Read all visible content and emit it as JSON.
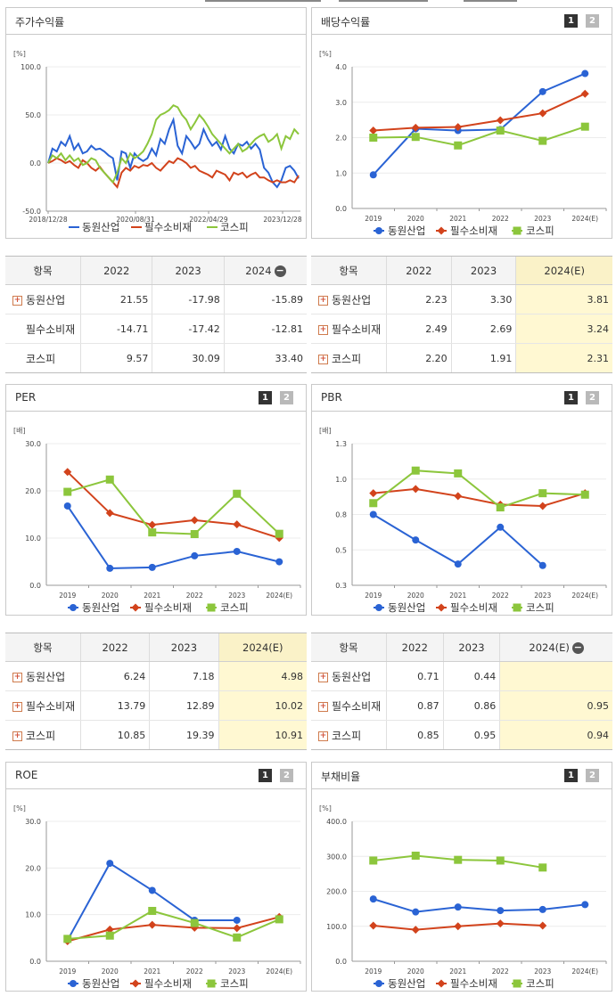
{
  "colors": {
    "dongwon": "#2a63d4",
    "pilsu": "#d2431c",
    "kospi": "#8cc63c"
  },
  "legend": [
    "동원산업",
    "필수소비재",
    "코스피"
  ],
  "pager": [
    "1",
    "2"
  ],
  "stock_return": {
    "title": "주가수익률",
    "unit": "[%]",
    "yticks": [
      "100.0",
      "50.0",
      "0.0",
      "-50.0"
    ],
    "xticks": [
      "2018/12/28",
      "2020/08/31",
      "2022/04/29",
      "2023/12/28"
    ],
    "table": {
      "headers": [
        "항목",
        "2022",
        "2023",
        "2024"
      ],
      "rows": [
        {
          "name": "동원산업",
          "plus": true,
          "values": [
            "21.55",
            "-17.98",
            "-15.89"
          ]
        },
        {
          "name": "필수소비재",
          "plus": false,
          "values": [
            "-14.71",
            "-17.42",
            "-12.81"
          ]
        },
        {
          "name": "코스피",
          "plus": false,
          "values": [
            "9.57",
            "30.09",
            "33.40"
          ]
        }
      ]
    }
  },
  "dividend": {
    "title": "배당수익률",
    "unit": "[%]",
    "yticks": [
      "4.0",
      "3.0",
      "2.0",
      "1.0",
      "0.0"
    ],
    "xticks": [
      "2019",
      "2020",
      "2021",
      "2022",
      "2023",
      "2024(E)"
    ],
    "table": {
      "headers": [
        "항목",
        "2022",
        "2023",
        "2024(E)"
      ],
      "rows": [
        {
          "name": "동원산업",
          "plus": true,
          "values": [
            "2.23",
            "3.30",
            "3.81"
          ]
        },
        {
          "name": "필수소비재",
          "plus": true,
          "values": [
            "2.49",
            "2.69",
            "3.24"
          ]
        },
        {
          "name": "코스피",
          "plus": true,
          "values": [
            "2.20",
            "1.91",
            "2.31"
          ]
        }
      ]
    }
  },
  "per": {
    "title": "PER",
    "unit": "[배]",
    "yticks": [
      "30.0",
      "20.0",
      "10.0",
      "0.0"
    ],
    "xticks": [
      "2019",
      "2020",
      "2021",
      "2022",
      "2023",
      "2024(E)"
    ],
    "table": {
      "headers": [
        "항목",
        "2022",
        "2023",
        "2024(E)"
      ],
      "rows": [
        {
          "name": "동원산업",
          "plus": true,
          "values": [
            "6.24",
            "7.18",
            "4.98"
          ]
        },
        {
          "name": "필수소비재",
          "plus": true,
          "values": [
            "13.79",
            "12.89",
            "10.02"
          ]
        },
        {
          "name": "코스피",
          "plus": true,
          "values": [
            "10.85",
            "19.39",
            "10.91"
          ]
        }
      ]
    }
  },
  "pbr": {
    "title": "PBR",
    "unit": "[배]",
    "yticks": [
      "1.3",
      "1.0",
      "0.8",
      "0.5",
      "0.3"
    ],
    "xticks": [
      "2019",
      "2020",
      "2021",
      "2022",
      "2023",
      "2024(E)"
    ],
    "table": {
      "headers": [
        "항목",
        "2022",
        "2023",
        "2024(E)"
      ],
      "rows": [
        {
          "name": "동원산업",
          "plus": true,
          "values": [
            "0.71",
            "0.44",
            ""
          ]
        },
        {
          "name": "필수소비재",
          "plus": true,
          "values": [
            "0.87",
            "0.86",
            "0.95"
          ]
        },
        {
          "name": "코스피",
          "plus": true,
          "values": [
            "0.85",
            "0.95",
            "0.94"
          ]
        }
      ]
    }
  },
  "roe": {
    "title": "ROE",
    "unit": "[%]",
    "yticks": [
      "30.0",
      "20.0",
      "10.0",
      "0.0"
    ],
    "xticks": [
      "2019",
      "2020",
      "2021",
      "2022",
      "2023",
      "2024(E)"
    ]
  },
  "debt": {
    "title": "부채비율",
    "unit": "[%]",
    "yticks": [
      "400.0",
      "300.0",
      "200.0",
      "100.0",
      "0.0"
    ],
    "xticks": [
      "2019",
      "2020",
      "2021",
      "2022",
      "2023",
      "2024(E)"
    ]
  },
  "chart_data": [
    {
      "type": "line",
      "title": "주가수익률",
      "ylim": [
        -50,
        100
      ],
      "x_range": [
        "2018/12/28",
        "2024"
      ],
      "series": [
        {
          "name": "동원산업",
          "values": [
            0,
            15,
            12,
            22,
            18,
            28,
            14,
            20,
            10,
            12,
            18,
            14,
            15,
            12,
            8,
            5,
            -18,
            12,
            10,
            -5,
            10,
            5,
            2,
            5,
            15,
            8,
            25,
            20,
            35,
            45,
            18,
            10,
            28,
            22,
            15,
            20,
            35,
            25,
            18,
            22,
            14,
            28,
            15,
            10,
            20,
            18,
            22,
            15,
            20,
            14,
            -5,
            -10,
            -20,
            -25,
            -18,
            -5,
            -3,
            -8,
            -16
          ]
        },
        {
          "name": "필수소비재",
          "values": [
            0,
            2,
            5,
            3,
            0,
            2,
            -2,
            -5,
            3,
            0,
            -5,
            -8,
            -4,
            -10,
            -15,
            -20,
            -25,
            -10,
            -5,
            -8,
            -3,
            -5,
            -2,
            -3,
            0,
            -5,
            -8,
            -3,
            2,
            0,
            5,
            3,
            0,
            -5,
            -3,
            -8,
            -10,
            -12,
            -15,
            -8,
            -10,
            -12,
            -18,
            -10,
            -12,
            -10,
            -15,
            -12,
            -10,
            -15,
            -15,
            -18,
            -20,
            -18,
            -20,
            -20,
            -18,
            -20,
            -13
          ]
        },
        {
          "name": "코스피",
          "values": [
            0,
            8,
            5,
            10,
            3,
            8,
            2,
            5,
            -2,
            0,
            5,
            3,
            -5,
            -10,
            -15,
            -20,
            -10,
            5,
            0,
            10,
            5,
            8,
            12,
            20,
            30,
            45,
            50,
            52,
            55,
            60,
            58,
            50,
            45,
            35,
            42,
            50,
            45,
            38,
            30,
            25,
            20,
            15,
            10,
            15,
            20,
            12,
            15,
            20,
            25,
            28,
            30,
            22,
            25,
            30,
            15,
            28,
            25,
            35,
            30
          ]
        }
      ]
    },
    {
      "type": "line",
      "title": "배당수익률",
      "categories": [
        "2019",
        "2020",
        "2021",
        "2022",
        "2023",
        "2024(E)"
      ],
      "ylim": [
        0,
        4
      ],
      "series": [
        {
          "name": "동원산업",
          "values": [
            0.95,
            2.25,
            2.2,
            2.23,
            3.3,
            3.81
          ]
        },
        {
          "name": "필수소비재",
          "values": [
            2.2,
            2.28,
            2.3,
            2.49,
            2.69,
            3.24
          ]
        },
        {
          "name": "코스피",
          "values": [
            2.0,
            2.02,
            1.78,
            2.2,
            1.91,
            2.31
          ]
        }
      ]
    },
    {
      "type": "line",
      "title": "PER",
      "categories": [
        "2019",
        "2020",
        "2021",
        "2022",
        "2023",
        "2024(E)"
      ],
      "ylim": [
        0,
        30
      ],
      "series": [
        {
          "name": "동원산업",
          "values": [
            16.8,
            3.6,
            3.8,
            6.24,
            7.18,
            4.98
          ]
        },
        {
          "name": "필수소비재",
          "values": [
            24.0,
            15.3,
            12.8,
            13.79,
            12.89,
            10.02
          ]
        },
        {
          "name": "코스피",
          "values": [
            19.8,
            22.4,
            11.2,
            10.85,
            19.39,
            10.91
          ]
        }
      ]
    },
    {
      "type": "line",
      "title": "PBR",
      "categories": [
        "2019",
        "2020",
        "2021",
        "2022",
        "2023",
        "2024(E)"
      ],
      "ylim": [
        0.3,
        1.3
      ],
      "series": [
        {
          "name": "동원산업",
          "values": [
            0.8,
            0.62,
            0.45,
            0.71,
            0.44,
            null
          ]
        },
        {
          "name": "필수소비재",
          "values": [
            0.95,
            0.98,
            0.93,
            0.87,
            0.86,
            0.95
          ]
        },
        {
          "name": "코스피",
          "values": [
            0.88,
            1.11,
            1.09,
            0.85,
            0.95,
            0.94
          ]
        }
      ]
    },
    {
      "type": "line",
      "title": "ROE",
      "categories": [
        "2019",
        "2020",
        "2021",
        "2022",
        "2023",
        "2024(E)"
      ],
      "ylim": [
        0,
        30
      ],
      "series": [
        {
          "name": "동원산업",
          "values": [
            4.5,
            21.0,
            15.2,
            8.8,
            8.8,
            null
          ]
        },
        {
          "name": "필수소비재",
          "values": [
            4.3,
            6.8,
            7.8,
            7.2,
            7.1,
            9.5
          ]
        },
        {
          "name": "코스피",
          "values": [
            4.8,
            5.5,
            10.8,
            8.2,
            5.1,
            9.0
          ]
        }
      ]
    },
    {
      "type": "line",
      "title": "부채비율",
      "categories": [
        "2019",
        "2020",
        "2021",
        "2022",
        "2023",
        "2024(E)"
      ],
      "ylim": [
        0,
        400
      ],
      "series": [
        {
          "name": "동원산업",
          "values": [
            178,
            141,
            155,
            145,
            148,
            162
          ]
        },
        {
          "name": "필수소비재",
          "values": [
            102,
            90,
            100,
            108,
            102,
            null
          ]
        },
        {
          "name": "코스피",
          "values": [
            288,
            302,
            290,
            288,
            268,
            null
          ]
        }
      ]
    }
  ]
}
